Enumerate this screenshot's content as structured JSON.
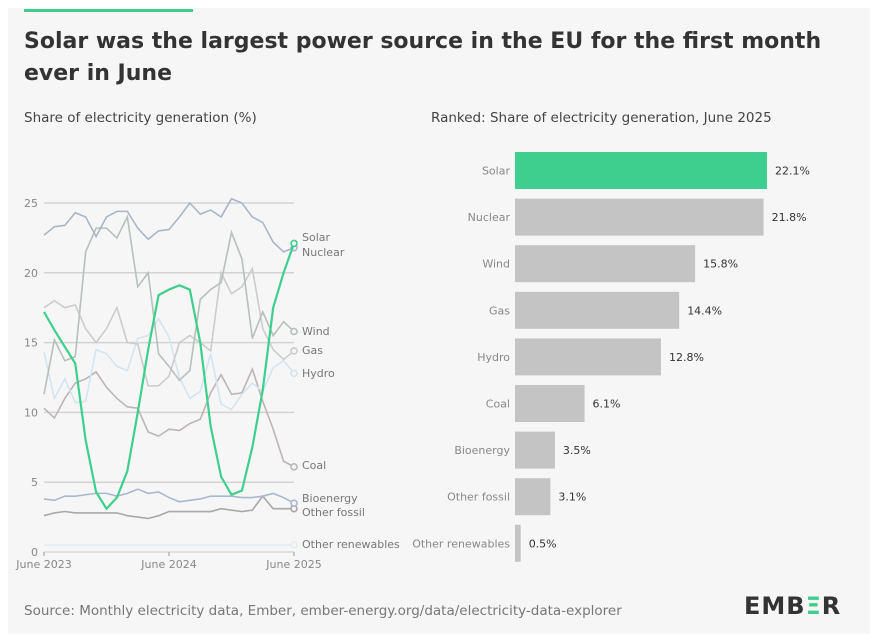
{
  "title": "Solar was the largest power source in the EU for the first month ever in June",
  "accent_color": "#3ecf8e",
  "source": "Source: Monthly electricity data, Ember, ember-energy.org/data/electricity-data-explorer",
  "logo": {
    "text": "EMBER",
    "pre": "EMB",
    "mid": "Ξ",
    "post": "R"
  },
  "chart_data": [
    {
      "type": "line",
      "title": "Share of electricity generation (%)",
      "xlabel": "",
      "ylabel": "",
      "ylim": [
        0,
        25
      ],
      "yticks": [
        "0",
        "5",
        "10",
        "15",
        "20",
        "25"
      ],
      "xticks": [
        "June 2023",
        "June 2024",
        "June 2025"
      ],
      "x_start": "June 2023",
      "x_end": "June 2025",
      "grid": true,
      "series": [
        {
          "name": "Solar",
          "color": "#3ecf8e",
          "values": [
            17.2,
            15.9,
            14.7,
            13.5,
            8,
            4.3,
            3.1,
            3.9,
            5.8,
            10,
            14.5,
            18.4,
            18.8,
            19.1,
            18.8,
            15,
            9,
            5.4,
            4.1,
            4.4,
            7.5,
            11.6,
            17.5,
            20,
            22.1
          ]
        },
        {
          "name": "Nuclear",
          "color": "#aab6c8",
          "values": [
            22.7,
            23.3,
            23.4,
            24.3,
            24,
            22.6,
            24,
            24.4,
            24.4,
            23.2,
            22.4,
            23,
            23.1,
            24,
            25,
            24.2,
            24.5,
            24,
            25.3,
            25,
            24,
            23.6,
            22.2,
            21.5,
            21.8
          ]
        },
        {
          "name": "Wind",
          "color": "#b5c1b9",
          "values": [
            11.3,
            15.2,
            13.7,
            14,
            21.5,
            23.2,
            23.2,
            22.5,
            24,
            19,
            20,
            14.2,
            13.3,
            12.3,
            13,
            18.1,
            18.8,
            19.3,
            22.9,
            21,
            15.3,
            17.2,
            15.5,
            16.5,
            15.8
          ]
        },
        {
          "name": "Gas",
          "color": "#cccccc",
          "values": [
            17.5,
            18,
            17.5,
            17.7,
            16,
            15,
            16,
            17.5,
            15,
            14.9,
            11.9,
            11.9,
            12.6,
            15,
            15.5,
            15,
            14.4,
            20,
            18.5,
            19,
            20.3,
            16,
            14.5,
            13.8,
            14.4
          ]
        },
        {
          "name": "Hydro",
          "color": "#d4e4f0",
          "values": [
            14.3,
            11,
            12.4,
            10.7,
            10.8,
            14.5,
            14.2,
            13.3,
            13,
            15.3,
            15.5,
            16.7,
            15.4,
            12.5,
            11,
            11.5,
            14.2,
            10.6,
            10.2,
            11.3,
            12.1,
            11.5,
            13.2,
            13.7,
            12.8
          ]
        },
        {
          "name": "Coal",
          "color": "#bdb5b5",
          "values": [
            10.3,
            9.6,
            11,
            12.1,
            12.4,
            12.9,
            11.8,
            11,
            10.4,
            10.3,
            8.6,
            8.3,
            8.8,
            8.7,
            9.2,
            9.5,
            11.4,
            12.7,
            11.3,
            11.4,
            13.1,
            10.8,
            8.8,
            6.5,
            6.1
          ]
        },
        {
          "name": "Bioenergy",
          "color": "#aab8cc",
          "values": [
            3.8,
            3.7,
            4,
            4,
            4.1,
            4.2,
            4.2,
            4,
            4.2,
            4.5,
            4.2,
            4.3,
            3.9,
            3.6,
            3.7,
            3.8,
            4,
            4,
            4,
            3.9,
            3.9,
            4,
            4.2,
            3.9,
            3.5
          ]
        },
        {
          "name": "Other fossil",
          "color": "#a8a8a8",
          "values": [
            2.6,
            2.8,
            2.9,
            2.8,
            2.8,
            2.8,
            2.8,
            2.8,
            2.6,
            2.5,
            2.4,
            2.6,
            2.9,
            2.9,
            2.9,
            2.9,
            2.9,
            3.1,
            3,
            2.9,
            3,
            4,
            3.1,
            3.1,
            3.1
          ]
        },
        {
          "name": "Other renewables",
          "color": "#e2eef5",
          "values": [
            0.5,
            0.5,
            0.5,
            0.5,
            0.5,
            0.5,
            0.5,
            0.5,
            0.5,
            0.5,
            0.5,
            0.5,
            0.5,
            0.5,
            0.5,
            0.5,
            0.5,
            0.5,
            0.5,
            0.5,
            0.5,
            0.5,
            0.5,
            0.5,
            0.5
          ]
        }
      ]
    },
    {
      "type": "bar",
      "title": "Ranked: Share of electricity generation, June 2025",
      "orientation": "horizontal",
      "categories": [
        "Solar",
        "Nuclear",
        "Wind",
        "Gas",
        "Hydro",
        "Coal",
        "Bioenergy",
        "Other fossil",
        "Other renewables"
      ],
      "values": [
        22.1,
        21.8,
        15.8,
        14.4,
        12.8,
        6.1,
        3.5,
        3.1,
        0.5
      ],
      "labels": [
        "22.1%",
        "21.8%",
        "15.8%",
        "14.4%",
        "12.8%",
        "6.1%",
        "3.5%",
        "3.1%",
        "0.5%"
      ],
      "highlight_color": "#3ecf8e",
      "bar_color": "#c4c4c4"
    }
  ]
}
